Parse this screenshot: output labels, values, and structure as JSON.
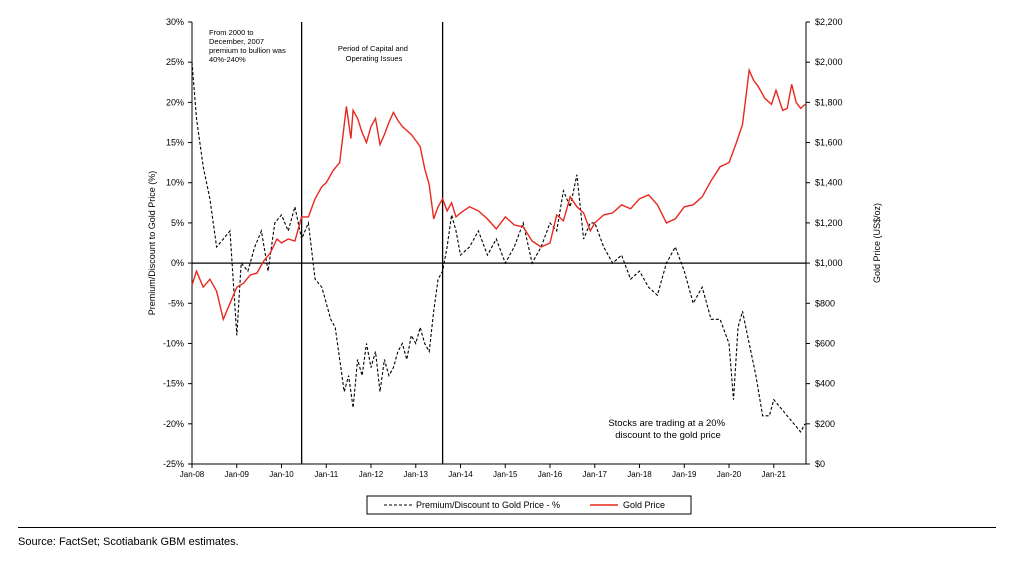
{
  "chart_data": {
    "type": "line",
    "x_categories": [
      "Jan-08",
      "Jan-09",
      "Jan-10",
      "Jan-11",
      "Jan-12",
      "Jan-13",
      "Jan-14",
      "Jan-15",
      "Jan-16",
      "Jan-17",
      "Jan-18",
      "Jan-19",
      "Jan-20",
      "Jan-21"
    ],
    "left_axis": {
      "title": "Premium/Discount to Gold Price (%)",
      "range": [
        -25,
        30
      ],
      "ticks": [
        "30%",
        "25%",
        "20%",
        "15%",
        "10%",
        "5%",
        "0%",
        "-5%",
        "-10%",
        "-15%",
        "-20%",
        "-25%"
      ]
    },
    "right_axis": {
      "title": "Gold Price (US$/oz)",
      "range": [
        0,
        2200
      ],
      "ticks": [
        "$2,200",
        "$2,000",
        "$1,800",
        "$1,600",
        "$1,400",
        "$1,200",
        "$1,000",
        "$800",
        "$600",
        "$400",
        "$200",
        "$0"
      ]
    },
    "series": [
      {
        "name": "Premium/Discount to Gold Price - %",
        "axis": "left",
        "style": "dashed",
        "color": "#000000",
        "x": [
          2008.0,
          2008.1,
          2008.25,
          2008.4,
          2008.55,
          2008.7,
          2008.85,
          2009.0,
          2009.1,
          2009.25,
          2009.4,
          2009.55,
          2009.7,
          2009.85,
          2010.0,
          2010.15,
          2010.3,
          2010.45,
          2010.6,
          2010.75,
          2010.9,
          2011.0,
          2011.1,
          2011.2,
          2011.3,
          2011.4,
          2011.5,
          2011.6,
          2011.7,
          2011.8,
          2011.9,
          2012.0,
          2012.1,
          2012.2,
          2012.3,
          2012.4,
          2012.5,
          2012.6,
          2012.7,
          2012.8,
          2012.9,
          2013.0,
          2013.1,
          2013.2,
          2013.3,
          2013.4,
          2013.5,
          2013.6,
          2013.7,
          2013.8,
          2013.9,
          2014.0,
          2014.2,
          2014.4,
          2014.6,
          2014.8,
          2015.0,
          2015.2,
          2015.4,
          2015.6,
          2015.8,
          2016.0,
          2016.15,
          2016.3,
          2016.45,
          2016.6,
          2016.75,
          2016.9,
          2017.0,
          2017.2,
          2017.4,
          2017.6,
          2017.8,
          2018.0,
          2018.2,
          2018.4,
          2018.6,
          2018.8,
          2019.0,
          2019.2,
          2019.4,
          2019.6,
          2019.8,
          2020.0,
          2020.1,
          2020.2,
          2020.3,
          2020.45,
          2020.6,
          2020.75,
          2020.9,
          2021.0,
          2021.15,
          2021.3,
          2021.45,
          2021.6,
          2021.7
        ],
        "values": [
          25,
          18,
          12,
          8,
          2,
          3,
          4,
          -9,
          0,
          -1,
          2,
          4,
          -1,
          5,
          6,
          4,
          7,
          3,
          5,
          -2,
          -3,
          -5,
          -7,
          -8,
          -12,
          -16,
          -14,
          -18,
          -12,
          -14,
          -10,
          -13,
          -11,
          -16,
          -12,
          -14,
          -13,
          -11,
          -10,
          -12,
          -9,
          -10,
          -8,
          -10,
          -11,
          -6,
          -2,
          -1,
          2,
          6,
          4,
          1,
          2,
          4,
          1,
          3,
          0,
          2,
          5,
          0,
          2,
          5,
          4,
          9,
          7,
          11,
          3,
          5,
          5,
          2,
          0,
          1,
          -2,
          -1,
          -3,
          -4,
          0,
          2,
          -1,
          -5,
          -3,
          -7,
          -7,
          -10,
          -17,
          -8,
          -6,
          -10,
          -14,
          -19,
          -19,
          -17,
          -18,
          -19,
          -20,
          -21,
          -20
        ]
      },
      {
        "name": "Gold Price",
        "axis": "right",
        "style": "solid",
        "color": "#e8281e",
        "x": [
          2008.0,
          2008.1,
          2008.25,
          2008.4,
          2008.55,
          2008.7,
          2008.85,
          2009.0,
          2009.15,
          2009.3,
          2009.45,
          2009.6,
          2009.75,
          2009.9,
          2010.0,
          2010.15,
          2010.3,
          2010.45,
          2010.6,
          2010.75,
          2010.9,
          2011.0,
          2011.15,
          2011.3,
          2011.45,
          2011.55,
          2011.6,
          2011.7,
          2011.8,
          2011.9,
          2012.0,
          2012.1,
          2012.2,
          2012.3,
          2012.4,
          2012.5,
          2012.6,
          2012.7,
          2012.8,
          2012.9,
          2013.0,
          2013.1,
          2013.2,
          2013.3,
          2013.4,
          2013.5,
          2013.6,
          2013.7,
          2013.8,
          2013.9,
          2014.0,
          2014.2,
          2014.4,
          2014.6,
          2014.8,
          2015.0,
          2015.2,
          2015.4,
          2015.6,
          2015.8,
          2016.0,
          2016.15,
          2016.3,
          2016.45,
          2016.6,
          2016.75,
          2016.9,
          2017.0,
          2017.2,
          2017.4,
          2017.6,
          2017.8,
          2018.0,
          2018.2,
          2018.4,
          2018.6,
          2018.8,
          2019.0,
          2019.2,
          2019.4,
          2019.6,
          2019.8,
          2020.0,
          2020.15,
          2020.3,
          2020.45,
          2020.55,
          2020.65,
          2020.8,
          2020.95,
          2021.05,
          2021.2,
          2021.3,
          2021.4,
          2021.5,
          2021.6,
          2021.7
        ],
        "values": [
          890,
          960,
          880,
          920,
          860,
          720,
          800,
          880,
          900,
          940,
          950,
          1010,
          1050,
          1120,
          1100,
          1120,
          1110,
          1230,
          1230,
          1320,
          1380,
          1400,
          1460,
          1500,
          1780,
          1620,
          1760,
          1720,
          1650,
          1600,
          1680,
          1720,
          1590,
          1640,
          1700,
          1750,
          1710,
          1680,
          1660,
          1640,
          1610,
          1580,
          1470,
          1390,
          1220,
          1280,
          1320,
          1260,
          1300,
          1230,
          1250,
          1280,
          1260,
          1220,
          1170,
          1230,
          1190,
          1180,
          1110,
          1080,
          1100,
          1240,
          1210,
          1330,
          1280,
          1250,
          1160,
          1200,
          1240,
          1250,
          1290,
          1270,
          1320,
          1340,
          1290,
          1200,
          1220,
          1280,
          1290,
          1330,
          1410,
          1480,
          1500,
          1590,
          1690,
          1960,
          1910,
          1880,
          1820,
          1790,
          1860,
          1760,
          1770,
          1890,
          1800,
          1770,
          1790
        ]
      }
    ],
    "annotations": [
      {
        "text_lines": [
          "From 2000 to",
          "December, 2007",
          "premium to bullion was",
          "40%-240%"
        ]
      },
      {
        "text_lines": [
          "Period of Capital and",
          "Operating Issues"
        ]
      },
      {
        "text_lines": [
          "Stocks are trading at a 20%",
          "discount to the gold price"
        ]
      }
    ],
    "vertical_markers_x": [
      2010.45,
      2013.6
    ],
    "legend": {
      "position": "bottom-center",
      "entries": [
        "Premium/Discount to Gold Price - %",
        "Gold Price"
      ]
    }
  },
  "footer": {
    "source": "Source: FactSet; Scotiabank GBM estimates."
  }
}
